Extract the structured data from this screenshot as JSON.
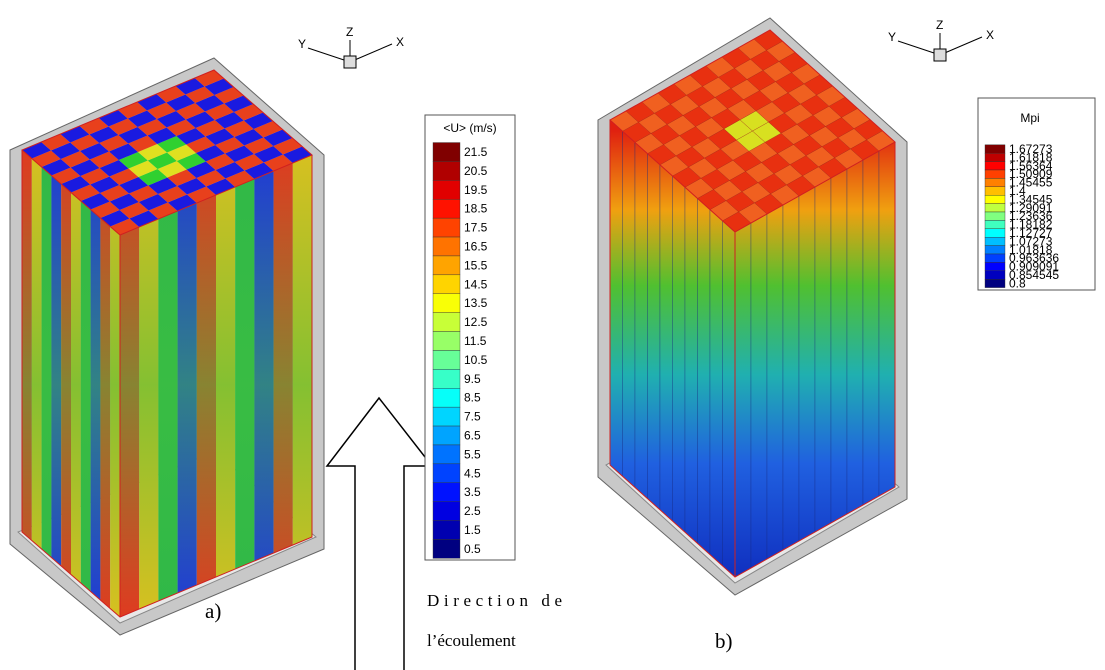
{
  "panel_a": {
    "label": "a)",
    "triad": [
      "Y",
      "Z",
      "X"
    ],
    "colorbar": {
      "title": "<U> (m/s)",
      "labels": [
        "21.5",
        "20.5",
        "19.5",
        "18.5",
        "17.5",
        "16.5",
        "15.5",
        "14.5",
        "13.5",
        "12.5",
        "11.5",
        "10.5",
        "9.5",
        "8.5",
        "7.5",
        "6.5",
        "5.5",
        "4.5",
        "3.5",
        "2.5",
        "1.5",
        "0.5"
      ]
    }
  },
  "panel_b": {
    "label": "b)",
    "triad": [
      "Y",
      "Z",
      "X"
    ],
    "colorbar": {
      "title": "Mpi",
      "labels": [
        "1.67273",
        "1.61818",
        "1.56364",
        "1.50909",
        "1.45455",
        "1.4",
        "1.34545",
        "1.29091",
        "1.23636",
        "1.18182",
        "1.12727",
        "1.07273",
        "1.01818",
        "0.963636",
        "0.909091",
        "0.854545",
        "0.8"
      ]
    }
  },
  "annotation": [
    "Direction de",
    "l’écoulement"
  ]
}
